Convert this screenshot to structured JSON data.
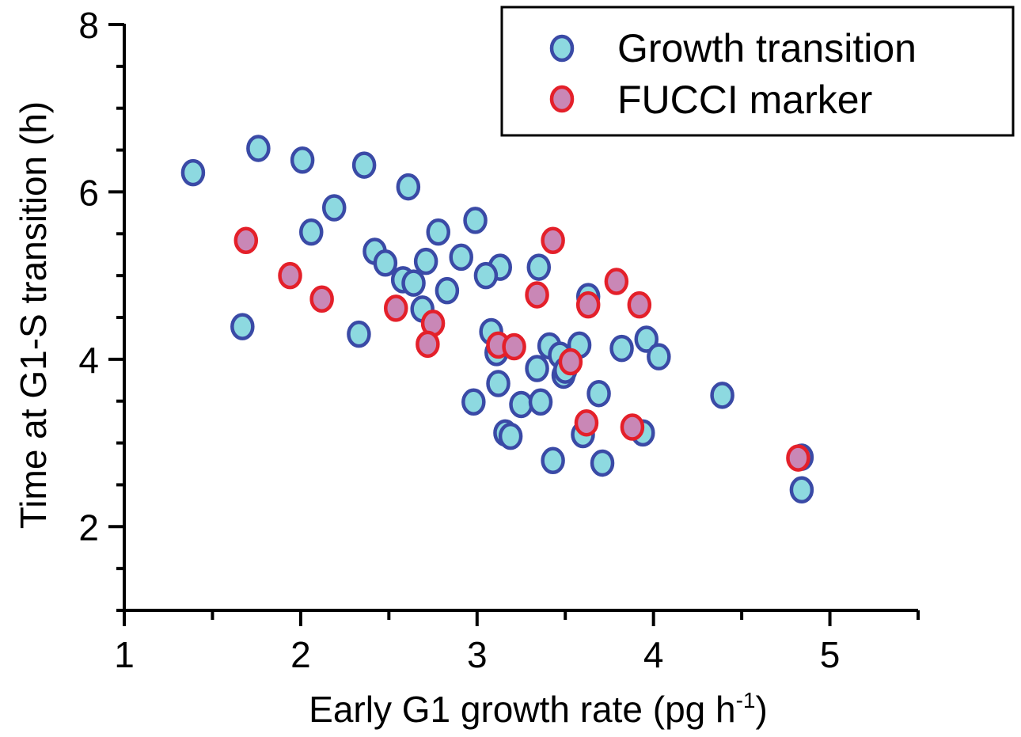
{
  "chart_data": {
    "type": "scatter",
    "title": "",
    "xlabel": "Early G1 growth rate (pg h",
    "xlabel_superscript": "-1",
    "xlabel_suffix": ")",
    "ylabel": "Time at G1-S transition (h)",
    "xlim": [
      1,
      5.5
    ],
    "ylim": [
      1,
      8
    ],
    "x_ticks": [
      1,
      2,
      3,
      4,
      5
    ],
    "x_tick_labels": [
      "1",
      "2",
      "3",
      "4",
      "5"
    ],
    "y_ticks": [
      2,
      4,
      6,
      8
    ],
    "y_tick_labels": [
      "2",
      "4",
      "6",
      "8"
    ],
    "grid": false,
    "legend_position": "top-right",
    "marker": "ellipse",
    "series": [
      {
        "name": "Growth transition",
        "fill": "#8dd9e0",
        "edge": "#3a4aa6",
        "points": [
          [
            1.39,
            6.23
          ],
          [
            1.76,
            6.52
          ],
          [
            2.01,
            6.38
          ],
          [
            2.36,
            6.32
          ],
          [
            2.61,
            6.06
          ],
          [
            2.19,
            5.81
          ],
          [
            2.06,
            5.52
          ],
          [
            2.99,
            5.66
          ],
          [
            2.78,
            5.52
          ],
          [
            2.42,
            5.29
          ],
          [
            2.48,
            5.15
          ],
          [
            2.71,
            5.17
          ],
          [
            2.91,
            5.22
          ],
          [
            3.13,
            5.1
          ],
          [
            3.35,
            5.1
          ],
          [
            3.05,
            5.0
          ],
          [
            2.58,
            4.95
          ],
          [
            2.64,
            4.91
          ],
          [
            2.83,
            4.82
          ],
          [
            2.69,
            4.6
          ],
          [
            3.63,
            4.75
          ],
          [
            1.67,
            4.39
          ],
          [
            2.33,
            4.3
          ],
          [
            3.08,
            4.33
          ],
          [
            3.11,
            4.08
          ],
          [
            3.41,
            4.16
          ],
          [
            3.47,
            4.05
          ],
          [
            3.58,
            4.17
          ],
          [
            3.82,
            4.13
          ],
          [
            3.96,
            4.24
          ],
          [
            4.03,
            4.03
          ],
          [
            3.34,
            3.89
          ],
          [
            3.49,
            3.81
          ],
          [
            3.5,
            3.87
          ],
          [
            3.12,
            3.71
          ],
          [
            2.98,
            3.49
          ],
          [
            3.25,
            3.46
          ],
          [
            3.36,
            3.49
          ],
          [
            3.69,
            3.59
          ],
          [
            4.39,
            3.57
          ],
          [
            3.16,
            3.12
          ],
          [
            3.19,
            3.08
          ],
          [
            3.6,
            3.1
          ],
          [
            3.94,
            3.12
          ],
          [
            3.43,
            2.79
          ],
          [
            3.71,
            2.76
          ],
          [
            4.84,
            2.83
          ],
          [
            4.84,
            2.44
          ]
        ]
      },
      {
        "name": "FUCCI marker",
        "fill": "#c987b6",
        "edge": "#e4202a",
        "points": [
          [
            1.69,
            5.42
          ],
          [
            1.94,
            5.0
          ],
          [
            2.12,
            4.72
          ],
          [
            2.54,
            4.61
          ],
          [
            2.75,
            4.43
          ],
          [
            2.72,
            4.18
          ],
          [
            3.43,
            5.42
          ],
          [
            3.34,
            4.77
          ],
          [
            3.12,
            4.17
          ],
          [
            3.21,
            4.15
          ],
          [
            3.53,
            3.97
          ],
          [
            3.79,
            4.93
          ],
          [
            3.63,
            4.65
          ],
          [
            3.92,
            4.65
          ],
          [
            3.62,
            3.24
          ],
          [
            3.88,
            3.19
          ],
          [
            4.82,
            2.82
          ]
        ]
      }
    ]
  },
  "colors": {
    "axis": "#000000",
    "legend_border": "#000000",
    "background": "#ffffff"
  }
}
